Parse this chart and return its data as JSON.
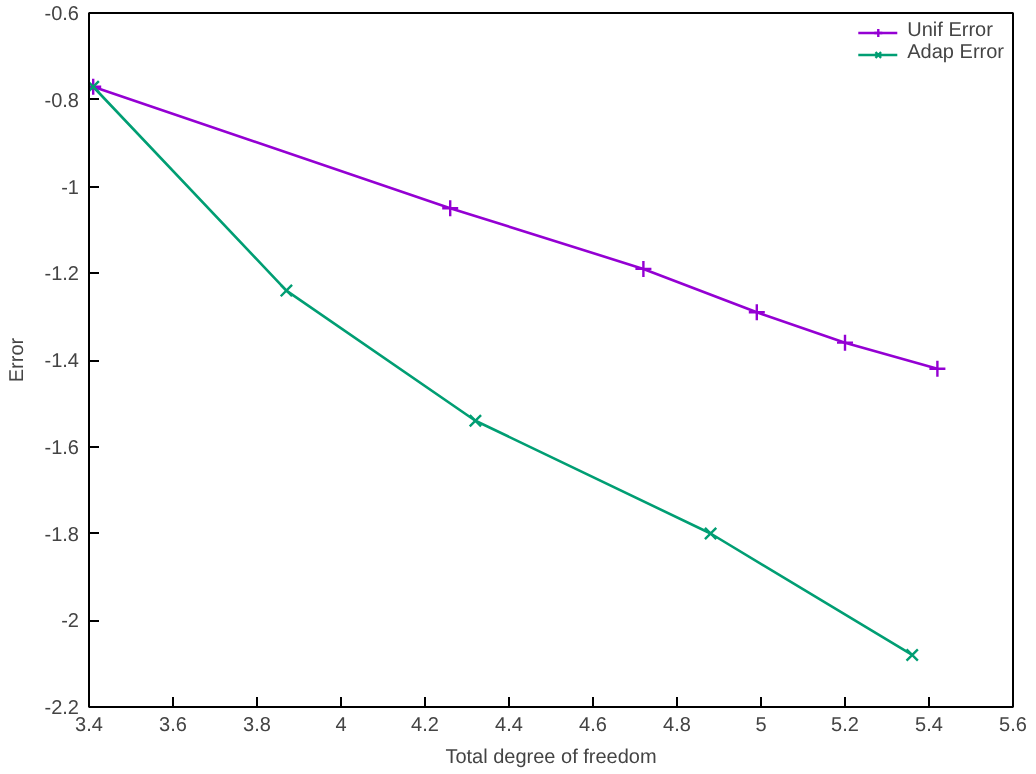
{
  "chart_data": {
    "type": "line",
    "xlabel": "Total degree of freedom",
    "ylabel": "Error",
    "xlim": [
      3.4,
      5.6
    ],
    "xticks": [
      3.4,
      3.6,
      3.8,
      4,
      4.2,
      4.4,
      4.6,
      4.8,
      5,
      5.2,
      5.4,
      5.6
    ],
    "ylim": [
      -2.2,
      -0.6
    ],
    "yticks": [
      -2.2,
      -2,
      -1.8,
      -1.6,
      -1.4,
      -1.2,
      -1,
      -0.8,
      -0.6
    ],
    "grid": false,
    "legend": "top right",
    "series": [
      {
        "name": "Unif Error",
        "color": "#9400d3",
        "marker": "plus",
        "x": [
          3.41,
          4.26,
          4.72,
          4.99,
          5.2,
          5.42
        ],
        "values": [
          -0.77,
          -1.05,
          -1.19,
          -1.29,
          -1.36,
          -1.42
        ]
      },
      {
        "name": "Adap Error",
        "color": "#009e73",
        "marker": "cross",
        "x": [
          3.41,
          3.87,
          4.32,
          4.88,
          5.36
        ],
        "values": [
          -0.77,
          -1.24,
          -1.54,
          -1.8,
          -2.08
        ]
      }
    ]
  }
}
